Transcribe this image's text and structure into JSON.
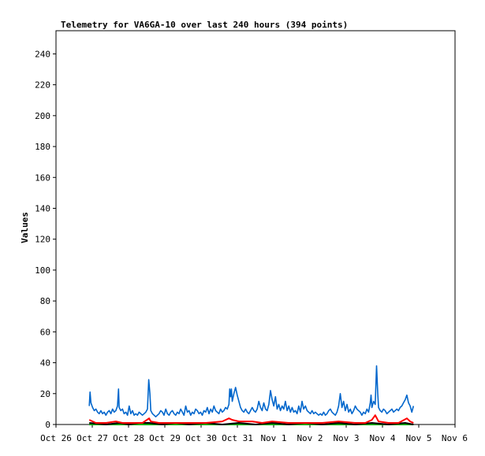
{
  "chart_data": {
    "type": "line",
    "title": "Telemetry for VA6GA-10 over last 240 hours (394 points)",
    "xlabel": "",
    "ylabel": "Values",
    "ylim": [
      0,
      255
    ],
    "xlim_hours": [
      0,
      240
    ],
    "grid": false,
    "legend": "none",
    "x_ticks": [
      "Oct 26",
      "Oct 27",
      "Oct 28",
      "Oct 29",
      "Oct 30",
      "Oct 31",
      "Nov 1",
      "Nov 2",
      "Nov 3",
      "Nov 4",
      "Nov 5",
      "Nov 6"
    ],
    "y_ticks": [
      0,
      20,
      40,
      60,
      80,
      100,
      120,
      140,
      160,
      180,
      200,
      220,
      240
    ],
    "series": [
      {
        "color": "#0066cc",
        "points": [
          [
            20,
            12
          ],
          [
            20.5,
            21
          ],
          [
            21,
            14
          ],
          [
            22,
            11
          ],
          [
            23,
            9
          ],
          [
            24,
            10
          ],
          [
            25,
            8
          ],
          [
            26,
            7
          ],
          [
            27,
            9
          ],
          [
            28,
            7
          ],
          [
            29,
            8
          ],
          [
            30,
            6
          ],
          [
            31,
            8
          ],
          [
            32,
            9
          ],
          [
            33,
            7
          ],
          [
            34,
            10
          ],
          [
            35,
            8
          ],
          [
            36,
            9
          ],
          [
            37,
            12
          ],
          [
            37.6,
            23
          ],
          [
            38,
            11
          ],
          [
            39,
            9
          ],
          [
            40,
            10
          ],
          [
            41,
            7
          ],
          [
            42,
            8
          ],
          [
            43,
            6
          ],
          [
            44,
            12
          ],
          [
            45,
            7
          ],
          [
            46,
            9
          ],
          [
            47,
            6
          ],
          [
            48,
            7
          ],
          [
            49,
            6
          ],
          [
            50,
            8
          ],
          [
            51,
            7
          ],
          [
            52,
            6
          ],
          [
            53,
            7
          ],
          [
            54,
            8
          ],
          [
            55,
            10
          ],
          [
            55.8,
            29
          ],
          [
            56.5,
            20
          ],
          [
            57,
            9
          ],
          [
            58,
            7
          ],
          [
            59,
            6
          ],
          [
            60,
            5
          ],
          [
            61,
            6
          ],
          [
            62,
            7
          ],
          [
            63,
            9
          ],
          [
            64,
            8
          ],
          [
            65,
            6
          ],
          [
            66,
            10
          ],
          [
            67,
            7
          ],
          [
            68,
            6
          ],
          [
            69,
            8
          ],
          [
            70,
            9
          ],
          [
            71,
            7
          ],
          [
            72,
            6
          ],
          [
            73,
            8
          ],
          [
            74,
            7
          ],
          [
            75,
            10
          ],
          [
            76,
            8
          ],
          [
            77,
            6
          ],
          [
            78,
            12
          ],
          [
            79,
            8
          ],
          [
            80,
            9
          ],
          [
            81,
            6
          ],
          [
            82,
            8
          ],
          [
            83,
            7
          ],
          [
            84,
            10
          ],
          [
            85,
            9
          ],
          [
            86,
            7
          ],
          [
            87,
            8
          ],
          [
            88,
            6
          ],
          [
            89,
            9
          ],
          [
            90,
            8
          ],
          [
            91,
            11
          ],
          [
            92,
            7
          ],
          [
            93,
            10
          ],
          [
            94,
            8
          ],
          [
            95,
            12
          ],
          [
            96,
            9
          ],
          [
            97,
            8
          ],
          [
            98,
            7
          ],
          [
            99,
            10
          ],
          [
            100,
            8
          ],
          [
            101,
            9
          ],
          [
            102,
            11
          ],
          [
            103,
            10
          ],
          [
            104,
            13
          ],
          [
            104.5,
            23
          ],
          [
            105,
            18
          ],
          [
            105.5,
            23
          ],
          [
            106,
            15
          ],
          [
            107,
            20
          ],
          [
            108,
            24
          ],
          [
            109,
            19
          ],
          [
            110,
            15
          ],
          [
            111,
            11
          ],
          [
            112,
            9
          ],
          [
            113,
            8
          ],
          [
            114,
            10
          ],
          [
            115,
            8
          ],
          [
            116,
            7
          ],
          [
            117,
            9
          ],
          [
            118,
            11
          ],
          [
            119,
            9
          ],
          [
            120,
            8
          ],
          [
            121,
            10
          ],
          [
            122,
            15
          ],
          [
            123,
            11
          ],
          [
            124,
            9
          ],
          [
            125,
            14
          ],
          [
            126,
            10
          ],
          [
            127,
            9
          ],
          [
            128,
            13
          ],
          [
            129,
            22
          ],
          [
            130,
            16
          ],
          [
            131,
            12
          ],
          [
            132,
            18
          ],
          [
            133,
            10
          ],
          [
            134,
            13
          ],
          [
            135,
            9
          ],
          [
            136,
            12
          ],
          [
            137,
            10
          ],
          [
            138,
            15
          ],
          [
            139,
            9
          ],
          [
            140,
            12
          ],
          [
            141,
            8
          ],
          [
            142,
            11
          ],
          [
            143,
            8
          ],
          [
            144,
            9
          ],
          [
            145,
            7
          ],
          [
            146,
            12
          ],
          [
            147,
            8
          ],
          [
            148,
            15
          ],
          [
            149,
            10
          ],
          [
            150,
            12
          ],
          [
            151,
            9
          ],
          [
            152,
            8
          ],
          [
            153,
            7
          ],
          [
            154,
            9
          ],
          [
            155,
            7
          ],
          [
            156,
            8
          ],
          [
            157,
            7
          ],
          [
            158,
            6
          ],
          [
            159,
            7
          ],
          [
            160,
            6
          ],
          [
            161,
            8
          ],
          [
            162,
            6
          ],
          [
            163,
            7
          ],
          [
            164,
            9
          ],
          [
            165,
            10
          ],
          [
            166,
            8
          ],
          [
            167,
            7
          ],
          [
            168,
            6
          ],
          [
            169,
            8
          ],
          [
            170,
            12
          ],
          [
            171,
            20
          ],
          [
            172,
            11
          ],
          [
            173,
            15
          ],
          [
            174,
            9
          ],
          [
            175,
            13
          ],
          [
            176,
            8
          ],
          [
            177,
            10
          ],
          [
            178,
            7
          ],
          [
            179,
            9
          ],
          [
            180,
            12
          ],
          [
            181,
            10
          ],
          [
            182,
            9
          ],
          [
            183,
            8
          ],
          [
            184,
            6
          ],
          [
            185,
            8
          ],
          [
            186,
            7
          ],
          [
            187,
            10
          ],
          [
            188,
            8
          ],
          [
            189,
            14
          ],
          [
            189.5,
            19
          ],
          [
            190,
            11
          ],
          [
            191,
            15
          ],
          [
            192,
            13
          ],
          [
            192.8,
            38
          ],
          [
            193.5,
            20
          ],
          [
            194,
            11
          ],
          [
            195,
            9
          ],
          [
            196,
            8
          ],
          [
            197,
            10
          ],
          [
            198,
            9
          ],
          [
            199,
            7
          ],
          [
            200,
            8
          ],
          [
            201,
            9
          ],
          [
            202,
            10
          ],
          [
            203,
            8
          ],
          [
            204,
            9
          ],
          [
            205,
            10
          ],
          [
            206,
            9
          ],
          [
            207,
            11
          ],
          [
            208,
            12
          ],
          [
            209,
            14
          ],
          [
            210,
            16
          ],
          [
            211,
            19
          ],
          [
            212,
            14
          ],
          [
            213,
            12
          ],
          [
            214,
            8
          ],
          [
            215,
            12
          ]
        ]
      },
      {
        "color": "#ff0000",
        "points": [
          [
            20,
            3
          ],
          [
            24,
            1
          ],
          [
            30,
            1
          ],
          [
            36,
            2
          ],
          [
            40,
            1
          ],
          [
            46,
            1
          ],
          [
            52,
            1
          ],
          [
            56,
            4
          ],
          [
            57,
            2
          ],
          [
            62,
            1
          ],
          [
            70,
            1
          ],
          [
            80,
            1
          ],
          [
            90,
            1
          ],
          [
            100,
            2
          ],
          [
            104,
            4
          ],
          [
            106,
            3
          ],
          [
            110,
            2
          ],
          [
            118,
            2
          ],
          [
            124,
            1
          ],
          [
            130,
            2
          ],
          [
            140,
            1
          ],
          [
            150,
            1
          ],
          [
            160,
            1
          ],
          [
            170,
            2
          ],
          [
            180,
            1
          ],
          [
            186,
            1
          ],
          [
            190,
            3
          ],
          [
            192,
            6
          ],
          [
            194,
            2
          ],
          [
            200,
            1
          ],
          [
            206,
            1
          ],
          [
            211,
            4
          ],
          [
            213,
            2
          ],
          [
            215,
            1
          ]
        ]
      },
      {
        "color": "#000000",
        "points": [
          [
            20,
            1
          ],
          [
            30,
            0
          ],
          [
            38,
            1
          ],
          [
            44,
            0
          ],
          [
            50,
            1
          ],
          [
            56,
            1
          ],
          [
            64,
            0
          ],
          [
            72,
            1
          ],
          [
            80,
            0
          ],
          [
            90,
            1
          ],
          [
            100,
            0
          ],
          [
            110,
            1
          ],
          [
            120,
            0
          ],
          [
            130,
            1
          ],
          [
            140,
            0
          ],
          [
            150,
            1
          ],
          [
            160,
            0
          ],
          [
            170,
            1
          ],
          [
            180,
            0
          ],
          [
            190,
            1
          ],
          [
            200,
            0
          ],
          [
            210,
            1
          ],
          [
            215,
            0
          ]
        ]
      },
      {
        "color": "#00aa00",
        "points": [
          [
            20,
            0
          ],
          [
            60,
            0
          ],
          [
            120,
            0
          ],
          [
            180,
            0
          ],
          [
            215,
            0
          ]
        ]
      }
    ]
  }
}
